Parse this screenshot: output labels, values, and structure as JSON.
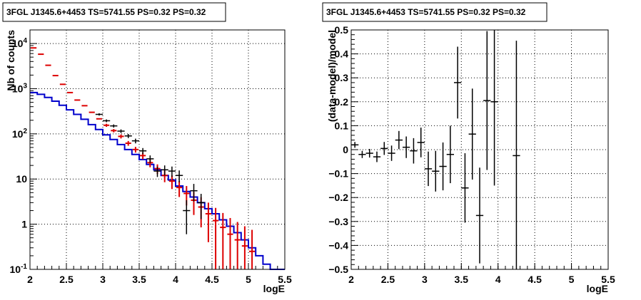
{
  "colors": {
    "data": "#000000",
    "model_total": "#dd0000",
    "model_source": "#0000cc",
    "grid": "#000000"
  },
  "chart_data": [
    {
      "type": "line",
      "title": "3FGL J1345.6+4453 TS=5741.55 PS=0.32 PS=0.32",
      "xlabel": "logE",
      "ylabel": "Nb of counts",
      "xlim": [
        2,
        5.5
      ],
      "ylim": [
        0.1,
        20000
      ],
      "yscale": "log",
      "grid": true,
      "xticks": [
        "2",
        "2.5",
        "3",
        "3.5",
        "4",
        "4.5",
        "5",
        "5.5"
      ],
      "yticks": [
        "10^-1",
        "1",
        "10",
        "10^2",
        "10^3",
        "10^4"
      ],
      "ytick_values": [
        0.1,
        1,
        10,
        100,
        1000,
        10000
      ],
      "series": [
        {
          "style": "model_total_with_errors",
          "x": [
            2.05,
            2.15,
            2.25,
            2.35,
            2.45,
            2.55,
            2.65,
            2.75,
            2.85,
            2.95,
            3.05,
            3.15,
            3.25,
            3.35,
            3.45,
            3.55,
            3.65,
            3.75,
            3.85,
            3.95,
            4.05,
            4.15,
            4.25,
            4.35,
            4.45,
            4.55,
            4.65,
            4.75,
            4.85,
            4.95,
            5.05
          ],
          "y": [
            8000,
            5800,
            3300,
            1950,
            1250,
            820,
            560,
            420,
            300,
            215,
            155,
            118,
            88,
            62,
            45,
            33,
            23,
            17,
            12,
            9,
            6.5,
            4.8,
            3.4,
            2.4,
            1.7,
            1.2,
            0.85,
            0.6,
            0.45,
            0.33,
            0.25
          ],
          "err": [
            0,
            0,
            0,
            0,
            0,
            0,
            0,
            0,
            0,
            0,
            12,
            10,
            9,
            7.5,
            6.5,
            5.5,
            4.8,
            4.1,
            3.5,
            3.0,
            2.5,
            2.2,
            1.8,
            1.55,
            1.3,
            1.1,
            0.92,
            0.77,
            0.67,
            0.57,
            0.5
          ]
        },
        {
          "style": "model_source_step",
          "x": [
            2.05,
            2.15,
            2.25,
            2.35,
            2.45,
            2.55,
            2.65,
            2.75,
            2.85,
            2.95,
            3.05,
            3.15,
            3.25,
            3.35,
            3.45,
            3.55,
            3.65,
            3.75,
            3.85,
            3.95,
            4.05,
            4.15,
            4.25,
            4.35,
            4.45,
            4.55,
            4.65,
            4.75,
            4.85,
            4.95,
            5.05,
            5.15,
            5.25,
            5.35,
            5.45
          ],
          "y": [
            820,
            750,
            640,
            530,
            430,
            340,
            270,
            210,
            160,
            125,
            95,
            75,
            58,
            45,
            35,
            27,
            21,
            16,
            12,
            9.5,
            7,
            5.3,
            4,
            3,
            2.2,
            1.7,
            1.25,
            0.9,
            0.65,
            0.45,
            0.3,
            0.2,
            0.13,
            0.1,
            0.1
          ]
        },
        {
          "style": "data_points",
          "x": [
            2.95,
            3.05,
            3.15,
            3.25,
            3.35,
            3.45,
            3.55,
            3.65,
            3.75,
            3.85,
            3.95,
            4.05,
            4.15,
            4.25,
            4.35
          ],
          "y": [
            270,
            195,
            150,
            115,
            90,
            70,
            42,
            28,
            15,
            16,
            15,
            12,
            2,
            5.5,
            3
          ],
          "err": [
            16,
            14,
            12,
            10.7,
            9.5,
            8.4,
            6.5,
            5.3,
            3.9,
            4,
            3.9,
            3.5,
            1.4,
            2.3,
            1.7
          ]
        }
      ]
    },
    {
      "type": "scatter",
      "title": "3FGL J1345.6+4453 TS=5741.55 PS=0.32 PS=0.32",
      "xlabel": "logE",
      "ylabel": "(data-model)/model",
      "xlim": [
        2,
        5.5
      ],
      "ylim": [
        -0.5,
        0.5
      ],
      "grid": true,
      "xticks": [
        "2",
        "2.5",
        "3",
        "3.5",
        "4",
        "4.5",
        "5",
        "5.5"
      ],
      "yticks": [
        "−0.5",
        "−0.4",
        "−0.3",
        "−0.2",
        "−0.1",
        "0",
        "0.1",
        "0.2",
        "0.3",
        "0.4",
        "0.5"
      ],
      "ytick_values": [
        -0.5,
        -0.4,
        -0.3,
        -0.2,
        -0.1,
        0,
        0.1,
        0.2,
        0.3,
        0.4,
        0.5
      ],
      "series": [
        {
          "style": "residual_points",
          "x": [
            2.05,
            2.15,
            2.25,
            2.35,
            2.45,
            2.55,
            2.65,
            2.75,
            2.85,
            2.95,
            3.05,
            3.15,
            3.25,
            3.35,
            3.45,
            3.55,
            3.65,
            3.75,
            3.85,
            3.95,
            4.25
          ],
          "y": [
            0.02,
            -0.02,
            -0.015,
            -0.03,
            0.005,
            -0.015,
            0.04,
            0.01,
            -0.005,
            0.03,
            -0.08,
            -0.09,
            -0.07,
            -0.02,
            0.28,
            -0.16,
            0.065,
            -0.275,
            0.205,
            0.2,
            -0.025
          ],
          "err": [
            0.012,
            0.015,
            0.018,
            0.022,
            0.027,
            0.032,
            0.038,
            0.045,
            0.053,
            0.062,
            0.072,
            0.085,
            0.1,
            0.12,
            0.15,
            0.145,
            0.19,
            0.2,
            0.29,
            0.35,
            0.48
          ]
        }
      ]
    }
  ]
}
